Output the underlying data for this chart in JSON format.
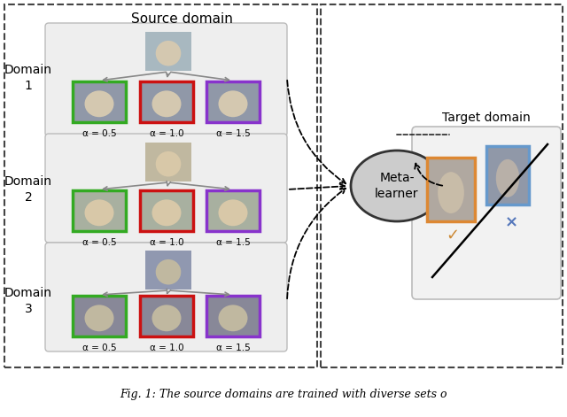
{
  "caption": "Fig. 1: The source domains are trained with diverse sets o",
  "source_domain_label": "Source domain",
  "target_domain_label": "Target domain",
  "meta_learner_label": "Meta-\nlearner",
  "domain_labels": [
    "Domain\n1",
    "Domain\n2",
    "Domain\n3"
  ],
  "alpha_labels": [
    "α = 0.5",
    "α = 1.0",
    "α = 1.5"
  ],
  "box_colors": [
    "#33aa22",
    "#cc1111",
    "#8833cc"
  ],
  "bg_color": "#ffffff",
  "outer_box_color": "#444444",
  "domain_bg": "#eeeeee",
  "meta_bg": "#cccccc",
  "check_color": "#cc8833",
  "cross_color": "#5577bb",
  "target_face_border_orange": "#dd8833",
  "target_face_border_blue": "#6699cc",
  "target_bg": "#f2f2f2"
}
